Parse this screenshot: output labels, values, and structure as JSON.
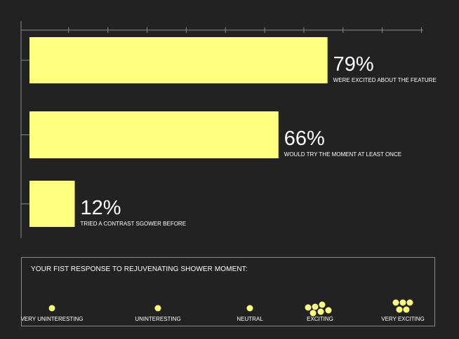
{
  "colors": {
    "background": "#222222",
    "bar": "#ffff80",
    "axis": "#8a8a8a",
    "text": "#ffffff"
  },
  "chart_data": {
    "type": "bar",
    "orientation": "horizontal",
    "categories": [
      "WERE EXCITED ABOUT THE FEATURE",
      "WOULD TRY THE MOMENT AT LEAST ONCE",
      "TRIED A CONTRAST SGOWER BEFORE"
    ],
    "values": [
      79,
      66,
      12
    ],
    "value_labels": [
      "79%",
      "66%",
      "12%"
    ],
    "xlim": [
      0,
      100
    ],
    "grid": false
  },
  "response_panel": {
    "title": "YOUR FIST RESPONSE TO REJUVENATING SHOWER MOMENT:",
    "scale": [
      {
        "label": "VERY UNINTERESTING",
        "dots": 1
      },
      {
        "label": "UNINTERESTING",
        "dots": 1
      },
      {
        "label": "NEUTRAL",
        "dots": 1
      },
      {
        "label": "EXCITING",
        "dots": 6
      },
      {
        "label": "VERY EXCITING",
        "dots": 5
      }
    ]
  }
}
